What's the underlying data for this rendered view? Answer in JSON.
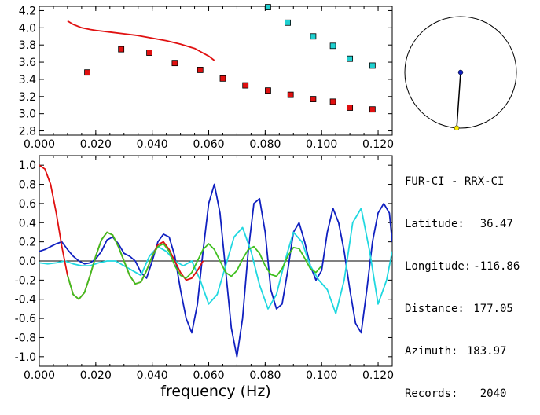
{
  "station_pair": "FUR-CI - RRX-CI",
  "info_rows": [
    {
      "label": "Latitude:",
      "value": "36.47"
    },
    {
      "label": "Longitude:",
      "value": "-116.86"
    },
    {
      "label": "Distance:",
      "value": "177.05"
    },
    {
      "label": "Azimuth:",
      "value": "183.97"
    },
    {
      "label": "Records:",
      "value": "2040"
    }
  ],
  "chart_data": [
    {
      "type": "scatter",
      "title": "",
      "xlabel": "",
      "ylabel": "",
      "xlim": [
        0.0,
        0.125
      ],
      "ylim": [
        2.75,
        4.25
      ],
      "xticks": [
        "0.000",
        "0.020",
        "0.040",
        "0.060",
        "0.080",
        "0.100",
        "0.120"
      ],
      "yticks": [
        "2.8",
        "3.0",
        "3.2",
        "3.4",
        "3.6",
        "3.8",
        "4.0",
        "4.2"
      ],
      "series": [
        {
          "kind": "line",
          "color": "#e01010",
          "x": [
            0.01,
            0.012,
            0.015,
            0.018,
            0.02,
            0.025,
            0.03,
            0.035,
            0.04,
            0.045,
            0.05,
            0.055,
            0.06,
            0.062
          ],
          "y": [
            4.08,
            4.04,
            4.0,
            3.98,
            3.97,
            3.95,
            3.93,
            3.91,
            3.88,
            3.85,
            3.81,
            3.76,
            3.67,
            3.62
          ]
        },
        {
          "kind": "markers",
          "color": "#e01010",
          "x": [
            0.017,
            0.029,
            0.039,
            0.048,
            0.057,
            0.065,
            0.073,
            0.081,
            0.089,
            0.097,
            0.104,
            0.11,
            0.118
          ],
          "y": [
            3.48,
            3.75,
            3.71,
            3.59,
            3.51,
            3.41,
            3.33,
            3.27,
            3.22,
            3.17,
            3.14,
            3.07,
            3.05
          ]
        },
        {
          "kind": "markers",
          "color": "#20d0d0",
          "x": [
            0.081,
            0.088,
            0.097,
            0.104,
            0.11,
            0.118
          ],
          "y": [
            4.24,
            4.06,
            3.9,
            3.79,
            3.64,
            3.56
          ]
        }
      ]
    },
    {
      "type": "line",
      "title": "",
      "xlabel": "frequency (Hz)",
      "ylabel": "",
      "xlim": [
        0.0,
        0.125
      ],
      "ylim": [
        -1.1,
        1.1
      ],
      "xticks": [
        "0.000",
        "0.020",
        "0.040",
        "0.060",
        "0.080",
        "0.100",
        "0.120"
      ],
      "yticks": [
        "1.0",
        "0.8",
        "0.6",
        "0.4",
        "0.2",
        "0.0",
        "-0.2",
        "-0.4",
        "-0.6",
        "-0.8",
        "-1.0"
      ],
      "series": [
        {
          "color": "#1020c0",
          "x": [
            0.0,
            0.002,
            0.004,
            0.006,
            0.008,
            0.01,
            0.012,
            0.014,
            0.016,
            0.018,
            0.02,
            0.022,
            0.024,
            0.026,
            0.028,
            0.03,
            0.032,
            0.034,
            0.036,
            0.038,
            0.04,
            0.042,
            0.044,
            0.046,
            0.048,
            0.05,
            0.052,
            0.054,
            0.056,
            0.058,
            0.06,
            0.062,
            0.064,
            0.066,
            0.068,
            0.07,
            0.072,
            0.074,
            0.076,
            0.078,
            0.08,
            0.082,
            0.084,
            0.086,
            0.088,
            0.09,
            0.092,
            0.094,
            0.096,
            0.098,
            0.1,
            0.102,
            0.104,
            0.106,
            0.108,
            0.11,
            0.112,
            0.114,
            0.116,
            0.118,
            0.12,
            0.122,
            0.124,
            0.125
          ],
          "y": [
            0.1,
            0.12,
            0.15,
            0.18,
            0.2,
            0.12,
            0.05,
            0.0,
            -0.03,
            -0.02,
            0.02,
            0.1,
            0.22,
            0.25,
            0.18,
            0.08,
            0.05,
            0.0,
            -0.12,
            -0.18,
            0.0,
            0.2,
            0.28,
            0.25,
            0.05,
            -0.3,
            -0.6,
            -0.75,
            -0.45,
            0.1,
            0.6,
            0.8,
            0.5,
            -0.1,
            -0.7,
            -1.0,
            -0.6,
            0.1,
            0.6,
            0.65,
            0.3,
            -0.3,
            -0.5,
            -0.45,
            -0.1,
            0.3,
            0.4,
            0.2,
            -0.05,
            -0.2,
            -0.1,
            0.3,
            0.55,
            0.4,
            0.1,
            -0.3,
            -0.65,
            -0.75,
            -0.3,
            0.2,
            0.5,
            0.6,
            0.5,
            0.2
          ]
        },
        {
          "color": "#20d8e0",
          "x": [
            0.0,
            0.003,
            0.006,
            0.009,
            0.012,
            0.015,
            0.018,
            0.021,
            0.024,
            0.027,
            0.03,
            0.033,
            0.036,
            0.039,
            0.042,
            0.045,
            0.048,
            0.051,
            0.054,
            0.057,
            0.06,
            0.063,
            0.066,
            0.069,
            0.072,
            0.075,
            0.078,
            0.081,
            0.084,
            0.087,
            0.09,
            0.093,
            0.096,
            0.099,
            0.102,
            0.105,
            0.108,
            0.111,
            0.114,
            0.117,
            0.12,
            0.123,
            0.125
          ],
          "y": [
            -0.02,
            -0.03,
            -0.02,
            0.0,
            -0.03,
            -0.05,
            -0.05,
            -0.02,
            0.0,
            0.0,
            -0.05,
            -0.1,
            -0.15,
            0.05,
            0.15,
            0.1,
            0.0,
            -0.05,
            0.0,
            -0.2,
            -0.45,
            -0.35,
            -0.05,
            0.25,
            0.35,
            0.1,
            -0.25,
            -0.5,
            -0.35,
            0.0,
            0.3,
            0.2,
            -0.05,
            -0.2,
            -0.3,
            -0.55,
            -0.2,
            0.4,
            0.55,
            0.1,
            -0.45,
            -0.2,
            0.1
          ]
        },
        {
          "color": "#e01010",
          "x": [
            0.0,
            0.002,
            0.004,
            0.006,
            0.008,
            0.01,
            0.012,
            0.014,
            0.016,
            0.018,
            0.02,
            0.022,
            0.024,
            0.026,
            0.028,
            0.03,
            0.032,
            0.034,
            0.036,
            0.038,
            0.04,
            0.042,
            0.044,
            0.046,
            0.048,
            0.05,
            0.052,
            0.054,
            0.056,
            0.058
          ],
          "y": [
            1.0,
            0.96,
            0.8,
            0.5,
            0.15,
            -0.15,
            -0.35,
            -0.4,
            -0.33,
            -0.15,
            0.05,
            0.22,
            0.3,
            0.27,
            0.15,
            0.0,
            -0.15,
            -0.24,
            -0.22,
            -0.1,
            0.05,
            0.17,
            0.2,
            0.12,
            0.0,
            -0.12,
            -0.2,
            -0.18,
            -0.1,
            0.0
          ]
        },
        {
          "color": "#40c020",
          "x": [
            0.01,
            0.012,
            0.014,
            0.016,
            0.018,
            0.02,
            0.022,
            0.024,
            0.026,
            0.028,
            0.03,
            0.032,
            0.034,
            0.036,
            0.038,
            0.04,
            0.042,
            0.044,
            0.046,
            0.048,
            0.05,
            0.052,
            0.054,
            0.056,
            0.058,
            0.06,
            0.062,
            0.064,
            0.066,
            0.068,
            0.07,
            0.072,
            0.074,
            0.076,
            0.078,
            0.08,
            0.082,
            0.084,
            0.086,
            0.088,
            0.09,
            0.092,
            0.094,
            0.096,
            0.098,
            0.1
          ],
          "y": [
            -0.15,
            -0.35,
            -0.4,
            -0.33,
            -0.15,
            0.05,
            0.22,
            0.3,
            0.27,
            0.15,
            0.0,
            -0.15,
            -0.24,
            -0.22,
            -0.1,
            0.05,
            0.15,
            0.18,
            0.1,
            -0.05,
            -0.15,
            -0.18,
            -0.12,
            0.0,
            0.12,
            0.18,
            0.12,
            0.0,
            -0.12,
            -0.16,
            -0.1,
            0.02,
            0.12,
            0.15,
            0.08,
            -0.05,
            -0.14,
            -0.16,
            -0.08,
            0.05,
            0.14,
            0.13,
            0.03,
            -0.08,
            -0.12,
            -0.05
          ]
        }
      ]
    }
  ],
  "azimuth_plot": {
    "azimuth_deg": 183.97,
    "center_color": "#1020c0",
    "end_color": "#ffee00"
  }
}
